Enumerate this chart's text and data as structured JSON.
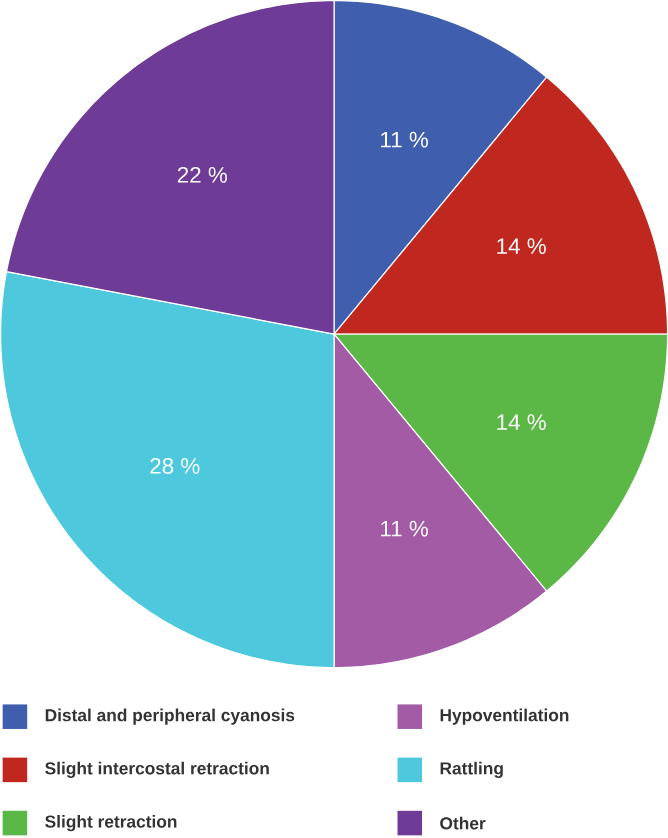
{
  "chart_data": {
    "type": "pie",
    "categories": [
      "Distal and peripheral cyanosis",
      "Slight intercostal retraction",
      "Slight retraction",
      "Hypoventilation",
      "Rattling",
      "Other"
    ],
    "values": [
      11,
      14,
      14,
      11,
      28,
      22
    ],
    "value_labels": [
      "11 %",
      "14 %",
      "14 %",
      "11 %",
      "28 %",
      "22 %"
    ],
    "colors": [
      "#3f5fae",
      "#c0271f",
      "#5cb846",
      "#a35ba6",
      "#4ec8dc",
      "#6e3b96"
    ],
    "legend": "bottom"
  }
}
